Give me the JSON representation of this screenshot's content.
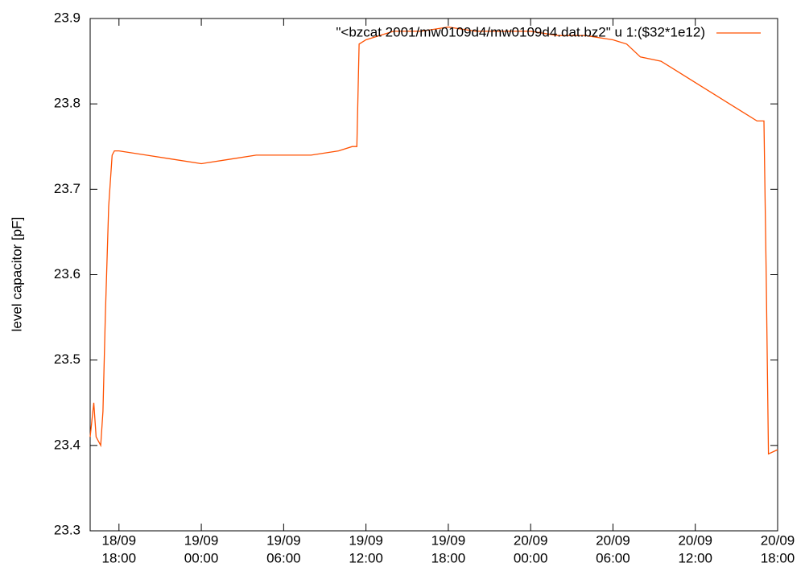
{
  "chart_data": {
    "type": "line",
    "ylabel": "level capacitor [pF]",
    "x": [
      "18/09 15:54",
      "18/09 16:10",
      "18/09 16:20",
      "18/09 16:40",
      "18/09 16:50",
      "18/09 17:00",
      "18/09 17:15",
      "18/09 17:30",
      "18/09 17:40",
      "18/09 18:00",
      "18/09 20:00",
      "18/09 22:00",
      "19/09 00:00",
      "19/09 02:00",
      "19/09 04:00",
      "19/09 06:00",
      "19/09 08:00",
      "19/09 10:00",
      "19/09 11:00",
      "19/09 11:20",
      "19/09 11:30",
      "19/09 12:00",
      "19/09 14:00",
      "19/09 16:00",
      "19/09 18:00",
      "19/09 20:00",
      "19/09 22:00",
      "20/09 00:00",
      "20/09 02:00",
      "20/09 04:00",
      "20/09 06:00",
      "20/09 07:00",
      "20/09 08:00",
      "20/09 09:30",
      "20/09 10:30",
      "20/09 11:30",
      "20/09 12:30",
      "20/09 13:30",
      "20/09 14:30",
      "20/09 15:30",
      "20/09 16:30",
      "20/09 17:00",
      "20/09 17:10",
      "20/09 17:20",
      "20/09 18:00"
    ],
    "series": [
      {
        "name": "\"<bzcat 2001/mw0109d4/mw0109d4.dat.bz2\" u 1:($32*1e12)",
        "color": "#ff5000",
        "values": [
          23.41,
          23.45,
          23.41,
          23.4,
          23.44,
          23.55,
          23.68,
          23.74,
          23.745,
          23.745,
          23.74,
          23.735,
          23.73,
          23.735,
          23.74,
          23.74,
          23.74,
          23.745,
          23.75,
          23.75,
          23.87,
          23.875,
          23.885,
          23.885,
          23.89,
          23.885,
          23.885,
          23.885,
          23.88,
          23.88,
          23.875,
          23.87,
          23.855,
          23.85,
          23.84,
          23.83,
          23.82,
          23.81,
          23.8,
          23.79,
          23.78,
          23.78,
          23.6,
          23.39,
          23.395
        ]
      }
    ],
    "xlim": [
      "18/09 15:54",
      "20/09 18:00"
    ],
    "xticks": [
      {
        "value": "18/09 18:00",
        "label": [
          "18/09",
          "18:00"
        ]
      },
      {
        "value": "19/09 00:00",
        "label": [
          "19/09",
          "00:00"
        ]
      },
      {
        "value": "19/09 06:00",
        "label": [
          "19/09",
          "06:00"
        ]
      },
      {
        "value": "19/09 12:00",
        "label": [
          "19/09",
          "12:00"
        ]
      },
      {
        "value": "19/09 18:00",
        "label": [
          "19/09",
          "18:00"
        ]
      },
      {
        "value": "20/09 00:00",
        "label": [
          "20/09",
          "00:00"
        ]
      },
      {
        "value": "20/09 06:00",
        "label": [
          "20/09",
          "06:00"
        ]
      },
      {
        "value": "20/09 12:00",
        "label": [
          "20/09",
          "12:00"
        ]
      },
      {
        "value": "20/09 18:00",
        "label": [
          "20/09",
          "18:00"
        ]
      }
    ],
    "ylim": [
      23.3,
      23.9
    ],
    "yticks": [
      23.3,
      23.4,
      23.5,
      23.6,
      23.7,
      23.8,
      23.9
    ],
    "legend": "top-right"
  }
}
